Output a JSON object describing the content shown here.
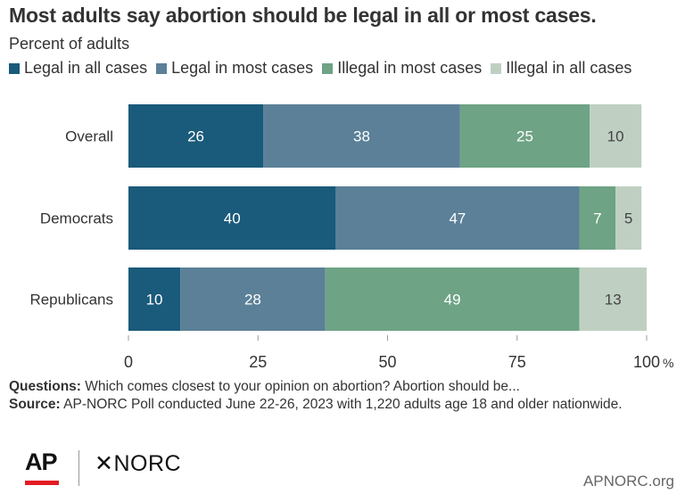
{
  "header": {
    "title": "Most adults say abortion should be legal in all or most cases.",
    "subtitle": "Percent of adults"
  },
  "legend": [
    {
      "label": "Legal in all cases",
      "color": "#1a5a7a"
    },
    {
      "label": "Legal in most cases",
      "color": "#5b8098"
    },
    {
      "label": "Illegal in most cases",
      "color": "#6ea385"
    },
    {
      "label": "Illegal in all cases",
      "color": "#bfd0c3"
    }
  ],
  "chart_data": {
    "type": "bar",
    "orientation": "horizontal",
    "stacked": true,
    "categories": [
      "Overall",
      "Democrats",
      "Republicans"
    ],
    "series": [
      {
        "name": "Legal in all cases",
        "values": [
          26,
          40,
          10
        ],
        "color": "#1a5a7a"
      },
      {
        "name": "Legal in most cases",
        "values": [
          38,
          47,
          28
        ],
        "color": "#5b8098"
      },
      {
        "name": "Illegal in most cases",
        "values": [
          25,
          7,
          49
        ],
        "color": "#6ea385"
      },
      {
        "name": "Illegal in all cases",
        "values": [
          10,
          5,
          13
        ],
        "color": "#bfd0c3"
      }
    ],
    "xlim": [
      0,
      100
    ],
    "xticks": [
      "0",
      "25",
      "50",
      "75",
      "100"
    ],
    "xunit": "%",
    "grid": false,
    "legend_position": "top"
  },
  "footer": {
    "questions_label": "Questions:",
    "questions_text": "Which comes closest to your opinion on abortion? Abortion should be...",
    "source_label": "Source:",
    "source_text": "AP-NORC Poll conducted June 22-26, 2023 with 1,220 adults age 18 and older nationwide."
  },
  "branding": {
    "ap_logo": "AP",
    "norc_logo": "✕NORC",
    "site": "APNORC.org"
  }
}
